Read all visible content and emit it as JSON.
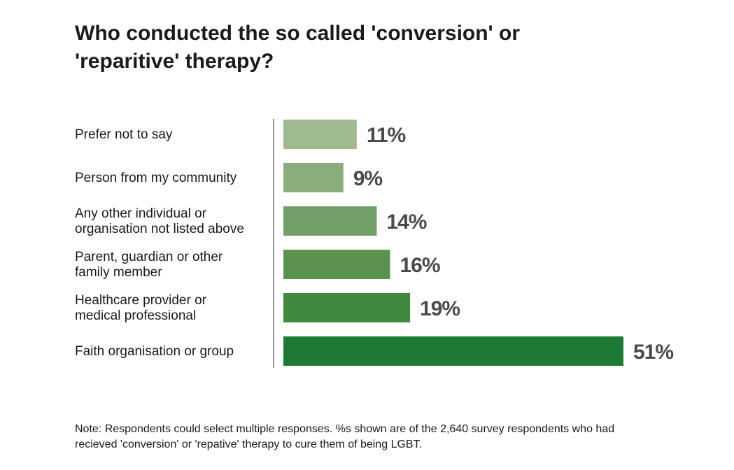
{
  "chart_data": {
    "type": "bar",
    "orientation": "horizontal",
    "title": "Who conducted the so called 'conversion' or\n'reparitive' therapy?",
    "categories": [
      [
        "Prefer not to say"
      ],
      [
        "Person from my community"
      ],
      [
        "Any other individual or",
        "organisation not listed above"
      ],
      [
        "Parent, guardian or other",
        "family member"
      ],
      [
        "Healthcare provider or",
        "medical professional"
      ],
      [
        "Faith organisation or group"
      ]
    ],
    "values": [
      11,
      9,
      14,
      16,
      19,
      51
    ],
    "value_labels": [
      "11%",
      "9%",
      "14%",
      "16%",
      "19%",
      "51%"
    ],
    "bar_colors": [
      "#9fba90",
      "#8aad7b",
      "#729f67",
      "#5a9250",
      "#3f8a3e",
      "#1c7a34"
    ],
    "xlim": [
      0,
      51
    ],
    "grid": false,
    "legend": "none",
    "note": "Note: Respondents could select multiple responses. %s shown are of the 2,640 survey respondents who had recieved 'conversion' or 'repative' therapy to cure them of being LGBT."
  }
}
